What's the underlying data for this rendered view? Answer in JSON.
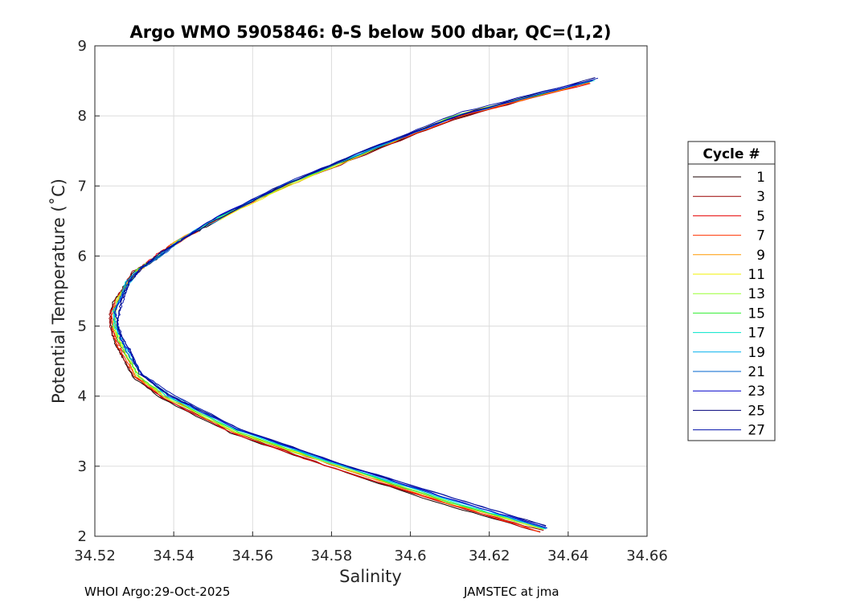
{
  "chart_data": {
    "type": "line",
    "title": "Argo WMO 5905846: θ-S below 500 dbar,  QC=(1,2)",
    "xlabel": "Salinity",
    "ylabel": "Potential Temperature (˚C)",
    "xlim": [
      34.52,
      34.66
    ],
    "ylim": [
      2,
      9
    ],
    "x_ticks": [
      "34.52",
      "34.54",
      "34.56",
      "34.58",
      "34.6",
      "34.62",
      "34.64",
      "34.66"
    ],
    "x_tick_values": [
      34.52,
      34.54,
      34.56,
      34.58,
      34.6,
      34.62,
      34.64,
      34.66
    ],
    "y_ticks": [
      "2",
      "3",
      "4",
      "5",
      "6",
      "7",
      "8",
      "9"
    ],
    "y_tick_values": [
      2,
      3,
      4,
      5,
      6,
      7,
      8,
      9
    ],
    "grid": true,
    "legend": {
      "title": "Cycle #",
      "placement": "outside-right",
      "entries": [
        {
          "label": "1",
          "color": "#1a0000"
        },
        {
          "label": "3",
          "color": "#990000"
        },
        {
          "label": "5",
          "color": "#e60000"
        },
        {
          "label": "7",
          "color": "#ff3300"
        },
        {
          "label": "9",
          "color": "#ff9900"
        },
        {
          "label": "11",
          "color": "#f2f200"
        },
        {
          "label": "13",
          "color": "#99ff33"
        },
        {
          "label": "15",
          "color": "#33ee33"
        },
        {
          "label": "17",
          "color": "#00e5cc"
        },
        {
          "label": "19",
          "color": "#00b0ee"
        },
        {
          "label": "21",
          "color": "#0066cc"
        },
        {
          "label": "23",
          "color": "#0000cc"
        },
        {
          "label": "25",
          "color": "#00007a"
        },
        {
          "label": "27",
          "color": "#0011aa"
        }
      ]
    },
    "profile_curve": {
      "theta": [
        2.1,
        2.5,
        3.0,
        3.5,
        4.0,
        4.3,
        4.6,
        4.8,
        5.0,
        5.2,
        5.4,
        5.6,
        5.8,
        6.0,
        6.2,
        6.5,
        7.0,
        7.5,
        8.0,
        8.5
      ],
      "salinity": [
        34.634,
        34.61,
        34.582,
        34.556,
        34.538,
        34.531,
        34.528,
        34.526,
        34.525,
        34.525,
        34.526,
        34.528,
        34.531,
        34.536,
        34.541,
        34.55,
        34.568,
        34.589,
        34.612,
        34.646
      ]
    }
  },
  "footer": {
    "left": "WHOI Argo:29-Oct-2025",
    "right": "JAMSTEC at jma"
  }
}
